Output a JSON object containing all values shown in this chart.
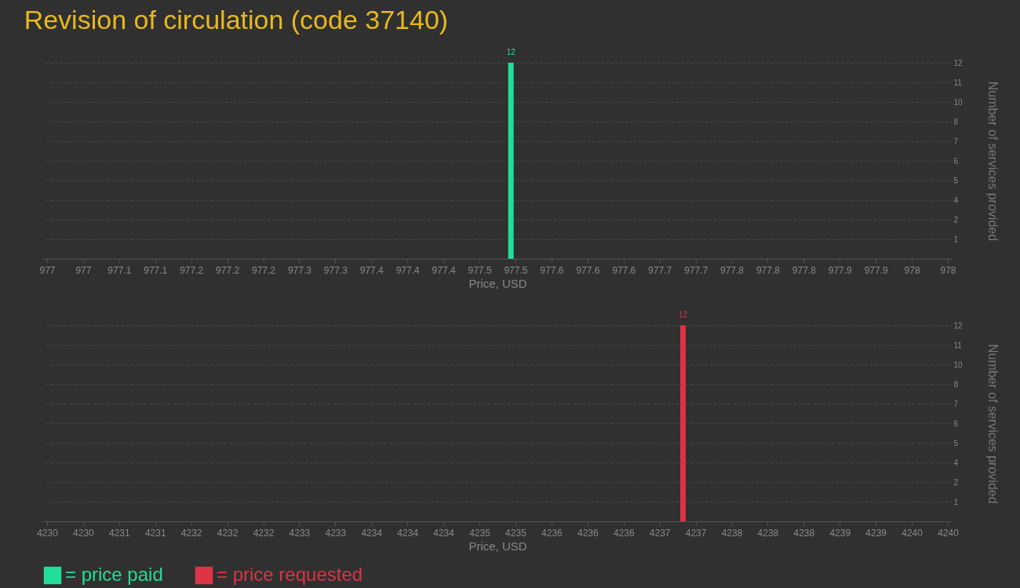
{
  "chart_data": [
    {
      "type": "bar",
      "title": "Revision of circulation (code 37140)",
      "xlabel": "Price, USD",
      "ylabel": "Number of services provided",
      "x": [
        977.515
      ],
      "series": [
        {
          "name": "= price paid",
          "color": "#22dd99",
          "values": [
            12
          ]
        }
      ],
      "data_labels": true,
      "legend": "bottom",
      "grid": "y",
      "xlim": [
        977,
        978
      ],
      "xticks": [
        {
          "value": 977,
          "label": "977"
        },
        {
          "value": 977.04,
          "label": "977"
        },
        {
          "value": 977.08,
          "label": "977.1"
        },
        {
          "value": 977.12,
          "label": "977.1"
        },
        {
          "value": 977.16,
          "label": "977.2"
        },
        {
          "value": 977.2,
          "label": "977.2"
        },
        {
          "value": 977.24,
          "label": "977.2"
        },
        {
          "value": 977.28,
          "label": "977.3"
        },
        {
          "value": 977.32,
          "label": "977.3"
        },
        {
          "value": 977.36,
          "label": "977.4"
        },
        {
          "value": 977.4,
          "label": "977.4"
        },
        {
          "value": 977.44,
          "label": "977.4"
        },
        {
          "value": 977.48,
          "label": "977.5"
        },
        {
          "value": 977.52,
          "label": "977.5"
        },
        {
          "value": 977.56,
          "label": "977.6"
        },
        {
          "value": 977.6,
          "label": "977.6"
        },
        {
          "value": 977.64,
          "label": "977.6"
        },
        {
          "value": 977.68,
          "label": "977.7"
        },
        {
          "value": 977.72,
          "label": "977.7"
        },
        {
          "value": 977.76,
          "label": "977.8"
        },
        {
          "value": 977.8,
          "label": "977.8"
        },
        {
          "value": 977.84,
          "label": "977.8"
        },
        {
          "value": 977.88,
          "label": "977.9"
        },
        {
          "value": 977.92,
          "label": "977.9"
        },
        {
          "value": 977.96,
          "label": "978"
        },
        {
          "value": 978,
          "label": "978"
        }
      ],
      "ylim": [
        0,
        12
      ],
      "yticks": [
        {
          "value": 1.2,
          "label": "1"
        },
        {
          "value": 2.4,
          "label": "2"
        },
        {
          "value": 3.6,
          "label": "4"
        },
        {
          "value": 4.8,
          "label": "5"
        },
        {
          "value": 6,
          "label": "6"
        },
        {
          "value": 7.2,
          "label": "7"
        },
        {
          "value": 8.4,
          "label": "8"
        },
        {
          "value": 9.6,
          "label": "10"
        },
        {
          "value": 10.8,
          "label": "11"
        },
        {
          "value": 12,
          "label": "12"
        }
      ]
    },
    {
      "type": "bar",
      "xlabel": "Price, USD",
      "ylabel": "Number of services provided",
      "x": [
        4237.06
      ],
      "series": [
        {
          "name": "= price requested",
          "color": "#dd3344",
          "values": [
            12
          ]
        }
      ],
      "data_labels": true,
      "legend": "bottom",
      "grid": "y",
      "xlim": [
        4230,
        4240
      ],
      "xticks": [
        {
          "value": 4230,
          "label": "4230"
        },
        {
          "value": 4230.4,
          "label": "4230"
        },
        {
          "value": 4230.8,
          "label": "4231"
        },
        {
          "value": 4231.2,
          "label": "4231"
        },
        {
          "value": 4231.6,
          "label": "4232"
        },
        {
          "value": 4232,
          "label": "4232"
        },
        {
          "value": 4232.4,
          "label": "4232"
        },
        {
          "value": 4232.8,
          "label": "4233"
        },
        {
          "value": 4233.2,
          "label": "4233"
        },
        {
          "value": 4233.6,
          "label": "4234"
        },
        {
          "value": 4234,
          "label": "4234"
        },
        {
          "value": 4234.4,
          "label": "4234"
        },
        {
          "value": 4234.8,
          "label": "4235"
        },
        {
          "value": 4235.2,
          "label": "4235"
        },
        {
          "value": 4235.6,
          "label": "4236"
        },
        {
          "value": 4236,
          "label": "4236"
        },
        {
          "value": 4236.4,
          "label": "4236"
        },
        {
          "value": 4236.8,
          "label": "4237"
        },
        {
          "value": 4237.2,
          "label": "4237"
        },
        {
          "value": 4237.6,
          "label": "4238"
        },
        {
          "value": 4238,
          "label": "4238"
        },
        {
          "value": 4238.4,
          "label": "4238"
        },
        {
          "value": 4238.8,
          "label": "4239"
        },
        {
          "value": 4239.2,
          "label": "4239"
        },
        {
          "value": 4239.6,
          "label": "4240"
        },
        {
          "value": 4240,
          "label": "4240"
        }
      ],
      "ylim": [
        0,
        12
      ],
      "yticks": [
        {
          "value": 1.2,
          "label": "1"
        },
        {
          "value": 2.4,
          "label": "2"
        },
        {
          "value": 3.6,
          "label": "4"
        },
        {
          "value": 4.8,
          "label": "5"
        },
        {
          "value": 6,
          "label": "6"
        },
        {
          "value": 7.2,
          "label": "7"
        },
        {
          "value": 8.4,
          "label": "8"
        },
        {
          "value": 9.6,
          "label": "10"
        },
        {
          "value": 10.8,
          "label": "11"
        },
        {
          "value": 12,
          "label": "12"
        }
      ]
    }
  ]
}
